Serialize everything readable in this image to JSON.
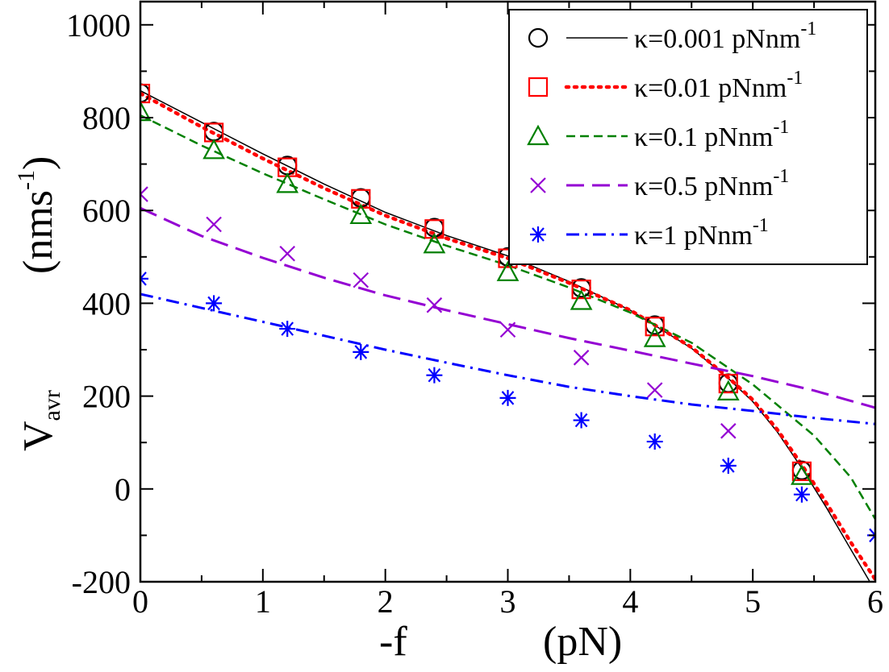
{
  "chart_data": {
    "type": "scatter",
    "title": "",
    "xlabel": {
      "main": "-f",
      "unit": "(pN)"
    },
    "ylabel": {
      "base": "V",
      "sub": "avr",
      "unit_open": "(nms",
      "unit_exp": "-1",
      "unit_close": ")"
    },
    "xlim": [
      0,
      6
    ],
    "ylim": [
      -200,
      1050
    ],
    "x_ticks": [
      0,
      1,
      2,
      3,
      4,
      5,
      6
    ],
    "x_tick_labels": [
      "0",
      "1",
      "2",
      "3",
      "4",
      "5",
      "6"
    ],
    "y_ticks": [
      -200,
      0,
      200,
      400,
      600,
      800,
      1000
    ],
    "y_tick_labels": [
      "-200",
      "0",
      "200",
      "400",
      "600",
      "800",
      "1000"
    ],
    "legend_position": "top-right",
    "series": [
      {
        "name": "κ=0.001 pNnm",
        "exp": "-1",
        "color": "#000000",
        "marker": "circle",
        "line": "solid",
        "x": [
          0,
          0.6,
          1.2,
          1.8,
          2.4,
          3.0,
          3.6,
          4.2,
          4.8,
          5.4
        ],
        "y": [
          853,
          770,
          697,
          627,
          563,
          500,
          433,
          353,
          228,
          40
        ],
        "curve_x": [
          0,
          0.5,
          1.0,
          1.5,
          2.0,
          2.5,
          3.0,
          3.5,
          4.0,
          4.5,
          4.8,
          5.0,
          5.2,
          5.4,
          5.6,
          5.8,
          6.0
        ],
        "curve_y": [
          858,
          790,
          722,
          657,
          596,
          546,
          502,
          447,
          385,
          303,
          238,
          188,
          123,
          45,
          -40,
          -130,
          -220
        ]
      },
      {
        "name": "κ=0.01 pNnm",
        "exp": "-1",
        "color": "#ff0000",
        "marker": "square",
        "line": "dotted",
        "x": [
          0,
          0.6,
          1.2,
          1.8,
          2.4,
          3.0,
          3.6,
          4.2,
          4.8,
          5.4
        ],
        "y": [
          852,
          768,
          693,
          625,
          560,
          497,
          430,
          350,
          227,
          38
        ],
        "curve_x": [
          0,
          0.5,
          1.0,
          1.5,
          2.0,
          2.5,
          3.0,
          3.5,
          4.0,
          4.5,
          4.8,
          5.0,
          5.2,
          5.4,
          5.6,
          5.8,
          6.0
        ],
        "curve_y": [
          852,
          780,
          712,
          648,
          589,
          540,
          497,
          444,
          385,
          305,
          240,
          192,
          128,
          52,
          -30,
          -115,
          -195
        ]
      },
      {
        "name": "κ=0.1 pNnm",
        "exp": "-1",
        "color": "#008000",
        "marker": "triangle",
        "line": "dashed",
        "x": [
          0,
          0.6,
          1.2,
          1.8,
          2.4,
          3.0,
          3.6,
          4.2,
          4.8,
          5.4
        ],
        "y": [
          812,
          730,
          657,
          590,
          527,
          467,
          405,
          325,
          210,
          28
        ],
        "curve_x": [
          0,
          0.5,
          1.0,
          1.5,
          2.0,
          2.5,
          3.0,
          3.5,
          4.0,
          4.5,
          5.0,
          5.5,
          5.8,
          6.0
        ],
        "curve_y": [
          805,
          740,
          680,
          624,
          570,
          524,
          482,
          434,
          380,
          315,
          225,
          115,
          25,
          -65
        ]
      },
      {
        "name": "κ=0.5 pNnm",
        "exp": "-1",
        "color": "#9400d3",
        "marker": "x",
        "line": "longdash",
        "x": [
          0,
          0.6,
          1.2,
          1.8,
          2.4,
          3.0,
          3.6,
          4.2,
          4.8
        ],
        "y": [
          635,
          570,
          507,
          450,
          396,
          343,
          283,
          213,
          125
        ],
        "curve_x": [
          0,
          0.5,
          1.0,
          1.5,
          2.0,
          2.5,
          3.0,
          3.5,
          4.0,
          4.5,
          5.0,
          5.5,
          6.0
        ],
        "curve_y": [
          605,
          545,
          498,
          455,
          417,
          385,
          355,
          325,
          298,
          270,
          243,
          212,
          175
        ]
      },
      {
        "name": "κ=1 pNnm",
        "exp": "-1",
        "color": "#0000ff",
        "marker": "asterisk",
        "line": "dashdot",
        "x": [
          0,
          0.6,
          1.2,
          1.8,
          2.4,
          3.0,
          3.6,
          4.2,
          4.8,
          5.4,
          6.0
        ],
        "y": [
          453,
          400,
          345,
          295,
          245,
          196,
          148,
          102,
          50,
          -12,
          -100
        ],
        "curve_x": [
          0,
          0.5,
          1.0,
          1.5,
          2.0,
          2.5,
          3.0,
          3.5,
          4.0,
          4.5,
          5.0,
          5.5,
          6.0
        ],
        "curve_y": [
          420,
          390,
          360,
          330,
          300,
          272,
          245,
          220,
          200,
          182,
          168,
          153,
          140
        ]
      }
    ]
  }
}
